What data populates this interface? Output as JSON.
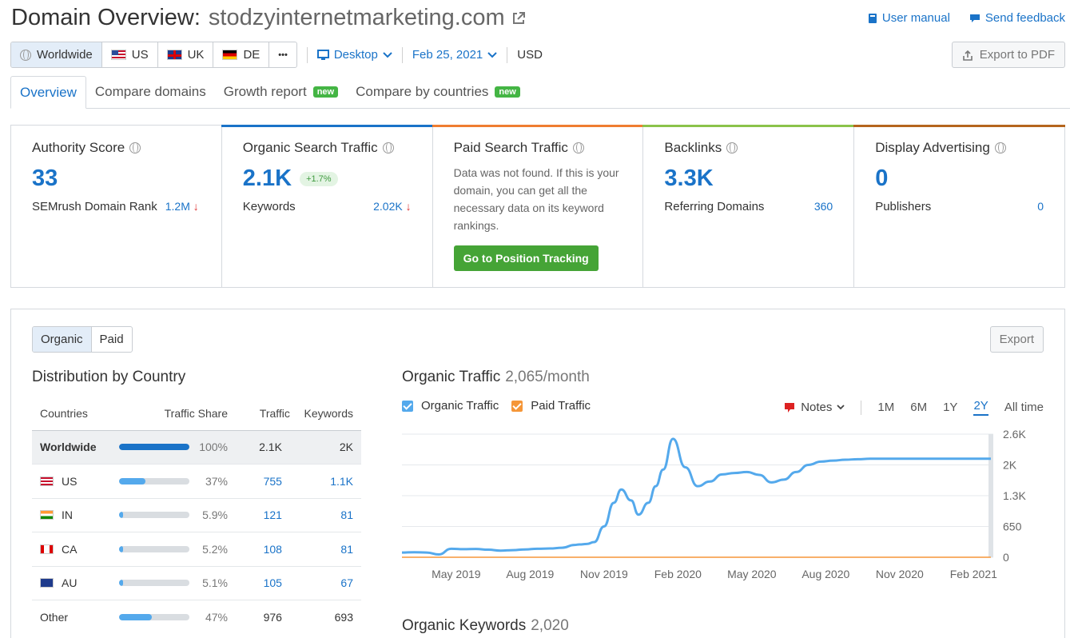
{
  "header": {
    "title_prefix": "Domain Overview:",
    "domain": "stodzyinternetmarketing.com",
    "user_manual": "User manual",
    "send_feedback": "Send feedback"
  },
  "filters": {
    "regions": [
      {
        "label": "Worldwide",
        "icon": "globe-icon",
        "active": true
      },
      {
        "label": "US",
        "icon": "us-flag-icon"
      },
      {
        "label": "UK",
        "icon": "uk-flag-icon"
      },
      {
        "label": "DE",
        "icon": "de-flag-icon"
      }
    ],
    "more": "•••",
    "device": "Desktop",
    "date": "Feb 25, 2021",
    "currency": "USD",
    "export_pdf": "Export to PDF"
  },
  "tabs": [
    {
      "label": "Overview",
      "active": true
    },
    {
      "label": "Compare domains"
    },
    {
      "label": "Growth report",
      "badge": "new"
    },
    {
      "label": "Compare by countries",
      "badge": "new"
    }
  ],
  "metrics": {
    "authority": {
      "title": "Authority Score",
      "value": "33",
      "sub_label": "SEMrush Domain Rank",
      "sub_value": "1.2M"
    },
    "organic": {
      "title": "Organic Search Traffic",
      "value": "2.1K",
      "delta": "+1.7%",
      "sub_label": "Keywords",
      "sub_value": "2.02K"
    },
    "paid": {
      "title": "Paid Search Traffic",
      "text": "Data was not found. If this is your domain, you can get all the necessary data on its keyword rankings.",
      "button": "Go to Position Tracking"
    },
    "backlinks": {
      "title": "Backlinks",
      "value": "3.3K",
      "sub_label": "Referring Domains",
      "sub_value": "360"
    },
    "display": {
      "title": "Display Advertising",
      "value": "0",
      "sub_label": "Publishers",
      "sub_value": "0"
    }
  },
  "panel": {
    "toggle": {
      "organic": "Organic",
      "paid": "Paid"
    },
    "export": "Export",
    "distribution_title": "Distribution by Country",
    "table_headers": [
      "Countries",
      "Traffic Share",
      "Traffic",
      "Keywords"
    ],
    "rows": [
      {
        "country": "Worldwide",
        "share": "100%",
        "share_value": 100,
        "traffic": "2.1K",
        "keywords": "2K"
      },
      {
        "country": "US",
        "share": "37%",
        "share_value": 37,
        "traffic": "755",
        "keywords": "1.1K"
      },
      {
        "country": "IN",
        "share": "5.9%",
        "share_value": 5.9,
        "traffic": "121",
        "keywords": "81"
      },
      {
        "country": "CA",
        "share": "5.2%",
        "share_value": 5.2,
        "traffic": "108",
        "keywords": "81"
      },
      {
        "country": "AU",
        "share": "5.1%",
        "share_value": 5.1,
        "traffic": "105",
        "keywords": "67"
      },
      {
        "country": "Other",
        "share": "47%",
        "share_value": 47,
        "traffic": "976",
        "keywords": "693"
      }
    ],
    "chart_title": "Organic Traffic",
    "chart_value": "2,065/month",
    "legend": {
      "organic": "Organic Traffic",
      "paid": "Paid Traffic"
    },
    "notes": "Notes",
    "periods": [
      "1M",
      "6M",
      "1Y",
      "2Y",
      "All time"
    ],
    "selected_period": "2Y",
    "keywords_title": "Organic Keywords",
    "keywords_value": "2,020"
  },
  "chart_data": {
    "type": "line",
    "x_ticks": [
      "May 2019",
      "Aug 2019",
      "Nov 2019",
      "Feb 2020",
      "May 2020",
      "Aug 2020",
      "Nov 2020",
      "Feb 2021"
    ],
    "y_ticks": [
      "0",
      "650",
      "1.3K",
      "2K",
      "2.6K"
    ],
    "ylim": [
      0,
      2600
    ],
    "series": [
      {
        "name": "Organic Traffic",
        "color": "#54a9ec",
        "x": [
          0,
          0.5,
          1,
          1.5,
          2,
          2.5,
          3,
          3.5,
          4,
          4.5,
          5,
          5.5,
          6,
          6.5,
          7,
          7.2,
          7.5,
          7.8,
          8.2,
          8.6,
          8.9,
          9.3,
          9.6,
          10,
          10.3,
          10.6,
          11,
          11.5,
          12,
          12.5,
          13,
          13.5,
          14,
          14.5,
          15,
          15.5,
          16,
          16.5,
          17,
          17.5,
          18,
          18.5,
          19,
          19.5,
          20,
          20.5,
          21,
          21.5,
          22,
          22.5,
          23,
          23.5,
          23.9
        ],
        "y": [
          100,
          105,
          100,
          60,
          180,
          170,
          175,
          160,
          140,
          150,
          165,
          180,
          185,
          200,
          260,
          270,
          280,
          320,
          650,
          1150,
          1430,
          1200,
          900,
          1150,
          1500,
          1850,
          2500,
          1900,
          1500,
          1600,
          1750,
          1780,
          1800,
          1740,
          1580,
          1640,
          1800,
          1950,
          2020,
          2040,
          2060,
          2070,
          2080,
          2080,
          2080,
          2080,
          2080,
          2080,
          2080,
          2080,
          2080,
          2080,
          2080
        ]
      },
      {
        "name": "Paid Traffic",
        "color": "#f59638",
        "x": [
          0,
          23.9
        ],
        "y": [
          0,
          0
        ]
      }
    ]
  },
  "colors": {
    "accent": "#1a73c8",
    "organic_bar": "#1a73c8",
    "paid_bar": "#ef7d31",
    "backlinks_bar": "#8bc34a",
    "display_bar": "#b5651d",
    "green": "#45a436"
  }
}
